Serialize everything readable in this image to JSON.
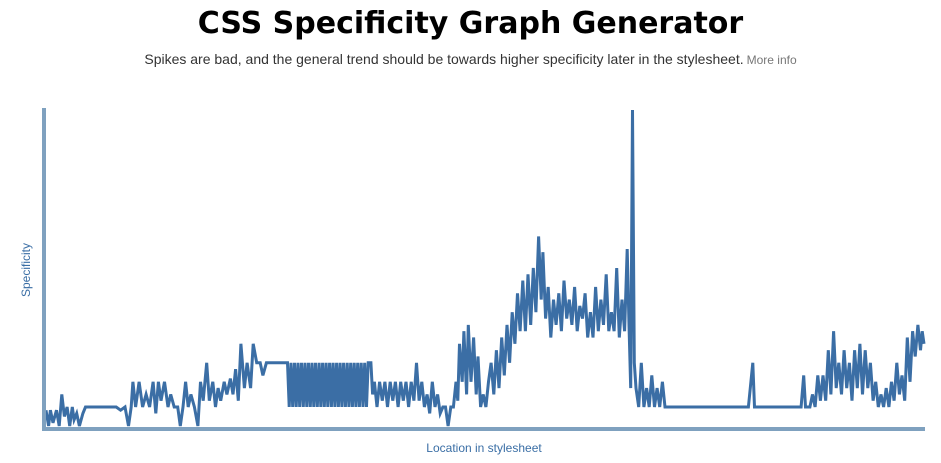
{
  "header": {
    "title": "CSS Specificity Graph Generator",
    "subtitle": "Spikes are bad, and the general trend should be towards higher specificity later in the stylesheet.",
    "more_info_label": "More info"
  },
  "colors": {
    "line": "#3b6ea5",
    "axis": "#7fa1bf",
    "axis_label": "#3a6ea5"
  },
  "chart_data": {
    "type": "line",
    "title": "",
    "xlabel": "Location in stylesheet",
    "ylabel": "Specificity",
    "grid": false,
    "legend": "none",
    "ylim": [
      0,
      100
    ],
    "xlim": [
      0,
      100
    ],
    "series": [
      {
        "name": "",
        "points": [
          [
            0.0,
            5
          ],
          [
            0.3,
            0
          ],
          [
            0.5,
            5
          ],
          [
            0.8,
            1
          ],
          [
            1.2,
            5
          ],
          [
            1.5,
            0
          ],
          [
            1.8,
            10
          ],
          [
            2.1,
            3
          ],
          [
            2.4,
            6
          ],
          [
            2.7,
            0
          ],
          [
            3.0,
            6
          ],
          [
            3.2,
            2
          ],
          [
            3.5,
            4
          ],
          [
            3.8,
            0
          ],
          [
            4.2,
            4
          ],
          [
            4.5,
            6
          ],
          [
            5.0,
            6
          ],
          [
            6.0,
            6
          ],
          [
            7.0,
            6
          ],
          [
            8.0,
            6
          ],
          [
            8.5,
            5
          ],
          [
            9.0,
            6
          ],
          [
            9.4,
            0
          ],
          [
            9.7,
            6
          ],
          [
            9.9,
            14
          ],
          [
            10.2,
            6
          ],
          [
            10.6,
            14
          ],
          [
            11.0,
            6
          ],
          [
            11.4,
            10
          ],
          [
            11.8,
            6
          ],
          [
            12.2,
            14
          ],
          [
            12.5,
            4
          ],
          [
            12.8,
            14
          ],
          [
            13.1,
            8
          ],
          [
            13.5,
            14
          ],
          [
            13.9,
            6
          ],
          [
            14.2,
            10
          ],
          [
            14.6,
            6
          ],
          [
            15.0,
            6
          ],
          [
            15.3,
            0
          ],
          [
            15.6,
            6
          ],
          [
            15.9,
            14
          ],
          [
            16.2,
            6
          ],
          [
            16.5,
            10
          ],
          [
            16.9,
            6
          ],
          [
            17.3,
            0
          ],
          [
            17.6,
            14
          ],
          [
            17.9,
            8
          ],
          [
            18.3,
            20
          ],
          [
            18.6,
            8
          ],
          [
            19.0,
            14
          ],
          [
            19.3,
            6
          ],
          [
            19.6,
            12
          ],
          [
            19.9,
            8
          ],
          [
            20.3,
            14
          ],
          [
            20.6,
            10
          ],
          [
            21.0,
            15
          ],
          [
            21.3,
            10
          ],
          [
            21.6,
            18
          ],
          [
            21.9,
            8
          ],
          [
            22.2,
            26
          ],
          [
            22.6,
            12
          ],
          [
            22.9,
            20
          ],
          [
            23.3,
            12
          ],
          [
            23.6,
            26
          ],
          [
            24.0,
            20
          ],
          [
            24.4,
            20
          ],
          [
            24.7,
            16
          ],
          [
            25.1,
            20
          ],
          [
            25.5,
            20
          ],
          [
            26.0,
            20
          ],
          [
            26.5,
            20
          ],
          [
            27.0,
            20
          ],
          [
            27.5,
            20
          ],
          [
            27.7,
            6
          ],
          [
            27.9,
            20
          ],
          [
            28.1,
            6
          ],
          [
            28.3,
            20
          ],
          [
            28.5,
            6
          ],
          [
            28.7,
            20
          ],
          [
            28.9,
            6
          ],
          [
            29.1,
            20
          ],
          [
            29.3,
            6
          ],
          [
            29.5,
            20
          ],
          [
            29.7,
            6
          ],
          [
            29.9,
            20
          ],
          [
            30.1,
            6
          ],
          [
            30.3,
            20
          ],
          [
            30.5,
            6
          ],
          [
            30.7,
            20
          ],
          [
            30.9,
            6
          ],
          [
            31.1,
            20
          ],
          [
            31.3,
            6
          ],
          [
            31.5,
            20
          ],
          [
            31.7,
            6
          ],
          [
            31.9,
            20
          ],
          [
            32.1,
            6
          ],
          [
            32.3,
            20
          ],
          [
            32.5,
            6
          ],
          [
            32.7,
            20
          ],
          [
            32.9,
            6
          ],
          [
            33.1,
            20
          ],
          [
            33.3,
            6
          ],
          [
            33.5,
            20
          ],
          [
            33.7,
            6
          ],
          [
            33.9,
            20
          ],
          [
            34.1,
            6
          ],
          [
            34.3,
            20
          ],
          [
            34.5,
            6
          ],
          [
            34.7,
            20
          ],
          [
            34.9,
            6
          ],
          [
            35.1,
            20
          ],
          [
            35.3,
            6
          ],
          [
            35.5,
            20
          ],
          [
            35.7,
            6
          ],
          [
            35.9,
            20
          ],
          [
            36.1,
            6
          ],
          [
            36.3,
            20
          ],
          [
            36.5,
            6
          ],
          [
            36.7,
            20
          ],
          [
            37.0,
            20
          ],
          [
            37.2,
            10
          ],
          [
            37.4,
            14
          ],
          [
            37.7,
            6
          ],
          [
            38.0,
            14
          ],
          [
            38.3,
            8
          ],
          [
            38.6,
            14
          ],
          [
            38.9,
            6
          ],
          [
            39.2,
            14
          ],
          [
            39.5,
            8
          ],
          [
            39.8,
            14
          ],
          [
            40.1,
            6
          ],
          [
            40.4,
            14
          ],
          [
            40.7,
            8
          ],
          [
            41.0,
            14
          ],
          [
            41.3,
            6
          ],
          [
            41.6,
            14
          ],
          [
            41.9,
            8
          ],
          [
            42.2,
            20
          ],
          [
            42.5,
            8
          ],
          [
            42.8,
            14
          ],
          [
            43.1,
            6
          ],
          [
            43.4,
            10
          ],
          [
            43.7,
            4
          ],
          [
            44.0,
            14
          ],
          [
            44.3,
            6
          ],
          [
            44.6,
            10
          ],
          [
            44.9,
            4
          ],
          [
            45.2,
            6
          ],
          [
            45.5,
            6
          ],
          [
            45.8,
            0
          ],
          [
            46.1,
            6
          ],
          [
            46.4,
            6
          ],
          [
            46.7,
            14
          ],
          [
            46.9,
            8
          ],
          [
            47.1,
            26
          ],
          [
            47.4,
            14
          ],
          [
            47.6,
            30
          ],
          [
            47.9,
            10
          ],
          [
            48.1,
            32
          ],
          [
            48.4,
            14
          ],
          [
            48.7,
            28
          ],
          [
            49.0,
            10
          ],
          [
            49.2,
            22
          ],
          [
            49.5,
            6
          ],
          [
            49.8,
            10
          ],
          [
            50.1,
            6
          ],
          [
            50.4,
            14
          ],
          [
            50.7,
            20
          ],
          [
            51.0,
            10
          ],
          [
            51.3,
            24
          ],
          [
            51.6,
            12
          ],
          [
            51.9,
            28
          ],
          [
            52.2,
            16
          ],
          [
            52.5,
            32
          ],
          [
            52.8,
            20
          ],
          [
            53.1,
            36
          ],
          [
            53.4,
            26
          ],
          [
            53.7,
            42
          ],
          [
            54.0,
            30
          ],
          [
            54.3,
            46
          ],
          [
            54.6,
            30
          ],
          [
            54.9,
            48
          ],
          [
            55.2,
            32
          ],
          [
            55.5,
            50
          ],
          [
            55.8,
            36
          ],
          [
            56.1,
            60
          ],
          [
            56.4,
            40
          ],
          [
            56.6,
            55
          ],
          [
            56.9,
            34
          ],
          [
            57.2,
            44
          ],
          [
            57.5,
            28
          ],
          [
            57.8,
            40
          ],
          [
            58.1,
            32
          ],
          [
            58.4,
            42
          ],
          [
            58.7,
            30
          ],
          [
            59.0,
            46
          ],
          [
            59.3,
            34
          ],
          [
            59.6,
            40
          ],
          [
            59.9,
            32
          ],
          [
            60.2,
            44
          ],
          [
            60.5,
            30
          ],
          [
            60.8,
            38
          ],
          [
            61.1,
            34
          ],
          [
            61.4,
            42
          ],
          [
            61.7,
            28
          ],
          [
            62.0,
            36
          ],
          [
            62.3,
            28
          ],
          [
            62.6,
            44
          ],
          [
            62.9,
            30
          ],
          [
            63.2,
            40
          ],
          [
            63.5,
            32
          ],
          [
            63.8,
            48
          ],
          [
            64.1,
            30
          ],
          [
            64.4,
            36
          ],
          [
            64.7,
            30
          ],
          [
            65.0,
            50
          ],
          [
            65.3,
            28
          ],
          [
            65.6,
            40
          ],
          [
            65.9,
            30
          ],
          [
            66.2,
            56
          ],
          [
            66.4,
            32
          ],
          [
            66.6,
            12
          ],
          [
            66.8,
            100
          ],
          [
            67.0,
            20
          ],
          [
            67.2,
            12
          ],
          [
            67.5,
            6
          ],
          [
            67.8,
            20
          ],
          [
            68.1,
            6
          ],
          [
            68.4,
            12
          ],
          [
            68.7,
            6
          ],
          [
            69.0,
            16
          ],
          [
            69.3,
            6
          ],
          [
            69.6,
            12
          ],
          [
            69.9,
            6
          ],
          [
            70.2,
            14
          ],
          [
            70.5,
            6
          ],
          [
            71.0,
            6
          ],
          [
            72.0,
            6
          ],
          [
            73.0,
            6
          ],
          [
            74.0,
            6
          ],
          [
            75.0,
            6
          ],
          [
            76.0,
            6
          ],
          [
            77.0,
            6
          ],
          [
            78.0,
            6
          ],
          [
            79.0,
            6
          ],
          [
            80.0,
            6
          ],
          [
            80.5,
            20
          ],
          [
            80.7,
            6
          ],
          [
            81.0,
            6
          ],
          [
            82.0,
            6
          ],
          [
            83.0,
            6
          ],
          [
            84.0,
            6
          ],
          [
            85.0,
            6
          ],
          [
            86.0,
            6
          ],
          [
            86.3,
            16
          ],
          [
            86.5,
            6
          ],
          [
            87.0,
            6
          ],
          [
            87.3,
            10
          ],
          [
            87.6,
            6
          ],
          [
            87.9,
            16
          ],
          [
            88.2,
            8
          ],
          [
            88.5,
            16
          ],
          [
            88.8,
            8
          ],
          [
            89.1,
            24
          ],
          [
            89.4,
            10
          ],
          [
            89.7,
            30
          ],
          [
            90.0,
            12
          ],
          [
            90.3,
            20
          ],
          [
            90.6,
            10
          ],
          [
            90.9,
            24
          ],
          [
            91.2,
            12
          ],
          [
            91.5,
            20
          ],
          [
            91.8,
            8
          ],
          [
            92.1,
            24
          ],
          [
            92.4,
            12
          ],
          [
            92.7,
            26
          ],
          [
            93.0,
            10
          ],
          [
            93.3,
            24
          ],
          [
            93.6,
            12
          ],
          [
            93.9,
            20
          ],
          [
            94.2,
            8
          ],
          [
            94.5,
            14
          ],
          [
            94.8,
            6
          ],
          [
            95.1,
            10
          ],
          [
            95.4,
            6
          ],
          [
            95.7,
            12
          ],
          [
            96.0,
            6
          ],
          [
            96.3,
            14
          ],
          [
            96.6,
            8
          ],
          [
            96.9,
            20
          ],
          [
            97.2,
            10
          ],
          [
            97.5,
            16
          ],
          [
            97.8,
            8
          ],
          [
            98.1,
            28
          ],
          [
            98.4,
            14
          ],
          [
            98.7,
            30
          ],
          [
            99.0,
            22
          ],
          [
            99.3,
            32
          ],
          [
            99.6,
            24
          ],
          [
            99.8,
            30
          ],
          [
            100.0,
            26
          ]
        ]
      }
    ]
  }
}
